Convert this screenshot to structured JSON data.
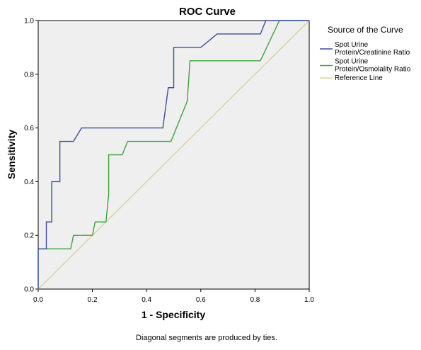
{
  "chart_data": {
    "type": "line",
    "title": "ROC Curve",
    "xlabel": "1 - Specificity",
    "ylabel": "Sensitivity",
    "xlim": [
      0,
      1
    ],
    "ylim": [
      0,
      1
    ],
    "xticks": [
      "0.0",
      "0.2",
      "0.4",
      "0.6",
      "0.8",
      "1.0"
    ],
    "yticks": [
      "0.0",
      "0.2",
      "0.4",
      "0.6",
      "0.8",
      "1.0"
    ],
    "grid": false,
    "legend": {
      "title": "Source of the Curve",
      "position": "right"
    },
    "footnote": "Diagonal segments are produced by ties.",
    "series": [
      {
        "name_lines": [
          "Spot Urine",
          "Protein/Creatinine Ratio"
        ],
        "color": "#3c4f9c",
        "x": [
          0.0,
          0.0,
          0.03,
          0.03,
          0.04,
          0.04,
          0.05,
          0.05,
          0.08,
          0.08,
          0.13,
          0.16,
          0.46,
          0.48,
          0.5,
          0.5,
          0.6,
          0.66,
          0.82,
          0.84,
          0.88,
          1.0
        ],
        "y": [
          0.0,
          0.15,
          0.15,
          0.25,
          0.25,
          0.25,
          0.25,
          0.4,
          0.4,
          0.55,
          0.55,
          0.6,
          0.6,
          0.75,
          0.75,
          0.9,
          0.9,
          0.95,
          0.95,
          1.0,
          1.0,
          1.0
        ]
      },
      {
        "name_lines": [
          "Spot Urine",
          "Protein/Osmolality Ratio"
        ],
        "color": "#3fa33f",
        "x": [
          0.0,
          0.0,
          0.12,
          0.13,
          0.2,
          0.21,
          0.25,
          0.26,
          0.26,
          0.31,
          0.33,
          0.49,
          0.55,
          0.56,
          0.82,
          0.89,
          1.0
        ],
        "y": [
          0.0,
          0.15,
          0.15,
          0.2,
          0.2,
          0.25,
          0.25,
          0.35,
          0.5,
          0.5,
          0.55,
          0.55,
          0.7,
          0.85,
          0.85,
          1.0,
          1.0
        ]
      },
      {
        "name_lines": [
          "Reference Line"
        ],
        "color": "#d9d2a3",
        "x": [
          0,
          1
        ],
        "y": [
          0,
          1
        ]
      }
    ]
  }
}
